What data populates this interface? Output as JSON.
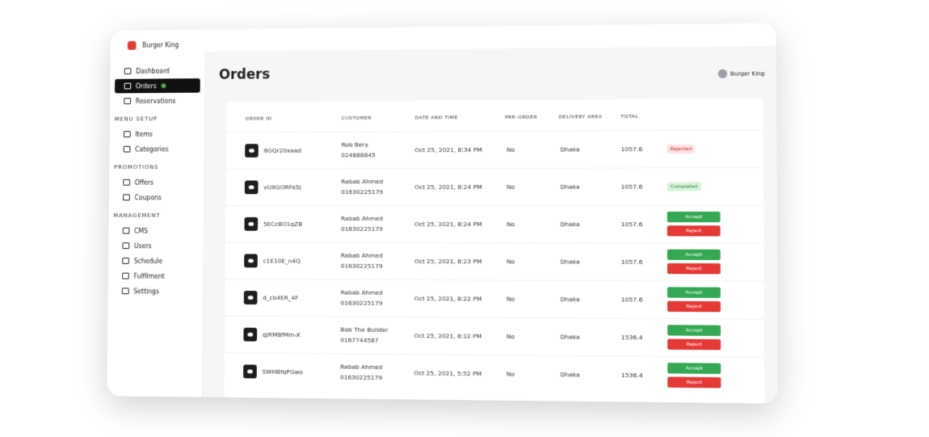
{
  "sidebar": {
    "brand": "Burger King",
    "nav": [
      "Dashboard",
      "Orders",
      "Reservations"
    ],
    "active": 1,
    "sections": [
      {
        "title": "MENU SETUP",
        "items": [
          "Items",
          "Categories"
        ]
      },
      {
        "title": "PROMOTIONS",
        "items": [
          "Offers",
          "Coupons"
        ]
      },
      {
        "title": "MANAGEMENT",
        "items": [
          "CMS",
          "Users",
          "Schedule",
          "Fulfilment",
          "Settings"
        ]
      }
    ]
  },
  "header": {
    "title": "Orders",
    "user": "Burger King"
  },
  "table": {
    "columns": [
      "ORDER ID",
      "CUSTOMER",
      "DATE AND TIME",
      "PRE-ORDER",
      "DELIVERY AREA",
      "TOTAL"
    ],
    "rows": [
      {
        "id": "6GQr20xaad",
        "customer": "Rob Bery",
        "phone": "024888845",
        "date": "Oct 25, 2021, 8:34 PM",
        "pre_order": "No",
        "area": "Dhaka",
        "total": 1057.6,
        "status": "Rejected"
      },
      {
        "id": "vUXGORFe5j",
        "customer": "Rabab Ahmed",
        "phone": "01630225179",
        "date": "Oct 25, 2021, 8:24 PM",
        "pre_order": "No",
        "area": "Dhaka",
        "total": 1057.6,
        "status": "Completed"
      },
      {
        "id": "5ECc8O1qZB",
        "customer": "Rabab Ahmed",
        "phone": "01630225179",
        "date": "Oct 25, 2021, 8:24 PM",
        "pre_order": "No",
        "area": "Dhaka",
        "total": 1057.6,
        "actions": [
          "Accept",
          "Reject"
        ]
      },
      {
        "id": "c1E10E_n4Q",
        "customer": "Rabab Ahmed",
        "phone": "01630225179",
        "date": "Oct 25, 2021, 8:23 PM",
        "pre_order": "No",
        "area": "Dhaka",
        "total": 1057.6,
        "actions": [
          "Accept",
          "Reject"
        ]
      },
      {
        "id": "d_cb4ER_4F",
        "customer": "Rabab Ahmed",
        "phone": "01630225179",
        "date": "Oct 25, 2021, 8:22 PM",
        "pre_order": "No",
        "area": "Dhaka",
        "total": 1057.6,
        "actions": [
          "Accept",
          "Reject"
        ]
      },
      {
        "id": "qJRMBfMm-X",
        "customer": "Bob The Builder",
        "phone": "0167744587",
        "date": "Oct 25, 2021, 6:12 PM",
        "pre_order": "No",
        "area": "Dhaka",
        "total": 1536.4,
        "actions": [
          "Accept",
          "Reject"
        ]
      },
      {
        "id": "SWHBfqPGwo",
        "customer": "Rabab Ahmed",
        "phone": "01630225179",
        "date": "Oct 25, 2021, 5:52 PM",
        "pre_order": "No",
        "area": "Dhaka",
        "total": 1536.4,
        "actions": [
          "Accept",
          "Reject"
        ]
      }
    ]
  }
}
